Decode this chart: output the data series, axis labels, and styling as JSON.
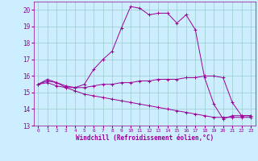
{
  "xlabel": "Windchill (Refroidissement éolien,°C)",
  "background_color": "#cceeff",
  "grid_color": "#99cccc",
  "line_color": "#990099",
  "xlim": [
    -0.5,
    23.5
  ],
  "ylim": [
    13,
    20.5
  ],
  "yticks": [
    13,
    14,
    15,
    16,
    17,
    18,
    19,
    20
  ],
  "xticks": [
    0,
    1,
    2,
    3,
    4,
    5,
    6,
    7,
    8,
    9,
    10,
    11,
    12,
    13,
    14,
    15,
    16,
    17,
    18,
    19,
    20,
    21,
    22,
    23
  ],
  "series": [
    {
      "x": [
        0,
        1,
        2,
        3,
        4,
        5,
        6,
        7,
        8,
        9,
        10,
        11,
        12,
        13,
        14,
        15,
        16,
        17,
        18,
        19,
        20,
        21,
        22,
        23
      ],
      "y": [
        15.5,
        15.8,
        15.6,
        15.3,
        15.3,
        15.5,
        16.4,
        17.0,
        17.5,
        18.9,
        20.2,
        20.1,
        19.7,
        19.8,
        19.8,
        19.2,
        19.7,
        18.8,
        15.9,
        14.3,
        13.4,
        13.6,
        13.6,
        13.6
      ]
    },
    {
      "x": [
        0,
        1,
        2,
        3,
        4,
        5,
        6,
        7,
        8,
        9,
        10,
        11,
        12,
        13,
        14,
        15,
        16,
        17,
        18,
        19,
        20,
        21,
        22,
        23
      ],
      "y": [
        15.5,
        15.7,
        15.6,
        15.4,
        15.3,
        15.3,
        15.4,
        15.5,
        15.5,
        15.6,
        15.6,
        15.7,
        15.7,
        15.8,
        15.8,
        15.8,
        15.9,
        15.9,
        16.0,
        16.0,
        15.9,
        14.4,
        13.6,
        13.6
      ]
    },
    {
      "x": [
        0,
        1,
        2,
        3,
        4,
        5,
        6,
        7,
        8,
        9,
        10,
        11,
        12,
        13,
        14,
        15,
        16,
        17,
        18,
        19,
        20,
        21,
        22,
        23
      ],
      "y": [
        15.5,
        15.6,
        15.4,
        15.3,
        15.1,
        14.9,
        14.8,
        14.7,
        14.6,
        14.5,
        14.4,
        14.3,
        14.2,
        14.1,
        14.0,
        13.9,
        13.8,
        13.7,
        13.6,
        13.5,
        13.5,
        13.5,
        13.5,
        13.5
      ]
    }
  ]
}
